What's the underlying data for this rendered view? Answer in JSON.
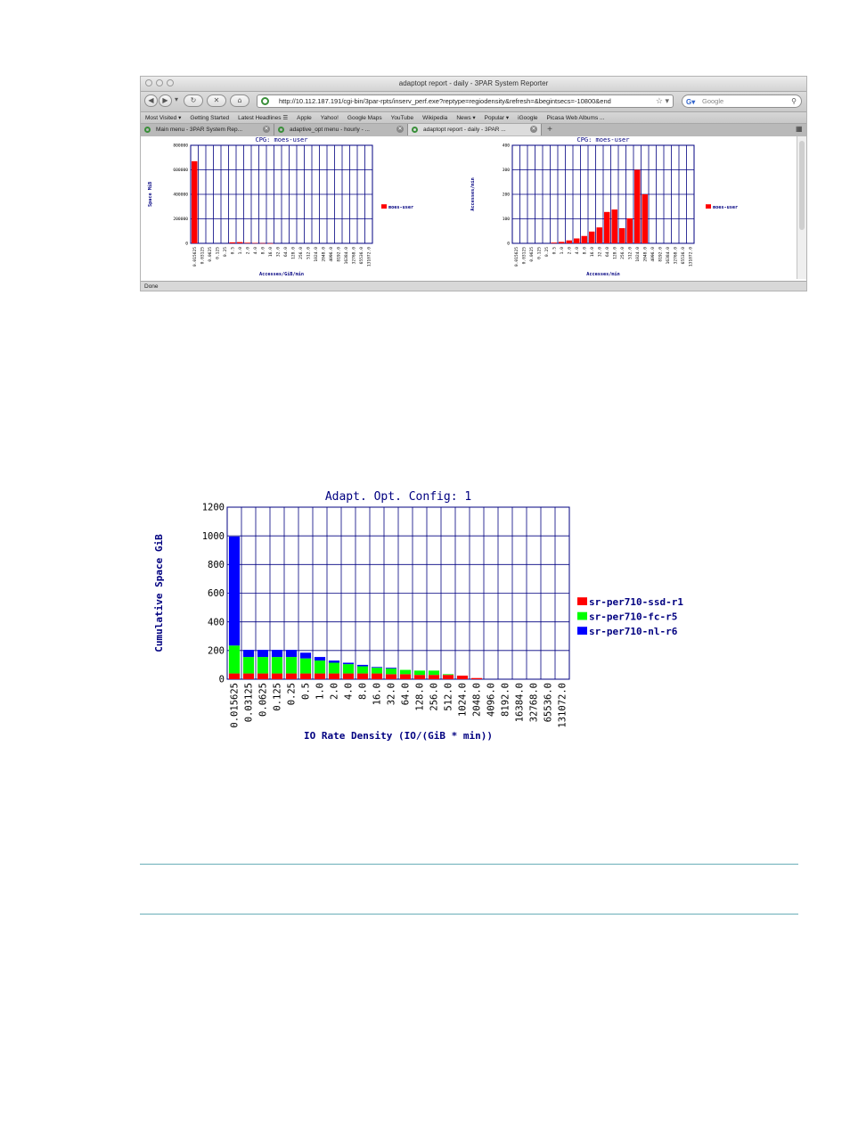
{
  "browser": {
    "window_title": "adaptopt report - daily - 3PAR System Reporter",
    "url": "http://10.112.187.191/cgi-bin/3par-rpts/inserv_perf.exe?reptype=regiodensity&refresh=&begintsecs=-10800&end",
    "search_placeholder": "Google",
    "bookmarks": [
      "Most Visited ▾",
      "Getting Started",
      "Latest Headlines ☰",
      "Apple",
      "Yahoo!",
      "Google Maps",
      "YouTube",
      "Wikipedia",
      "News ▾",
      "Popular ▾",
      "iGoogle",
      "Picasa Web Albums ..."
    ],
    "tabs": [
      {
        "label": "Main menu - 3PAR System Rep...",
        "active": false
      },
      {
        "label": "adaptive_opt menu - hourly - ...",
        "active": false
      },
      {
        "label": "adaptopt report - daily - 3PAR ...",
        "active": true
      }
    ],
    "status": "Done",
    "icons": {
      "back": "back-arrow-icon",
      "forward": "forward-arrow-icon",
      "reload": "reload-icon",
      "stop": "stop-icon",
      "home": "home-icon"
    }
  },
  "chart_data": [
    {
      "type": "bar",
      "title": "CPG: moes-user",
      "xlabel": "Accesses/GiB/min",
      "ylabel": "Space MiB",
      "categories": [
        "0.015625",
        "0.03125",
        "0.0625",
        "0.125",
        "0.25",
        "0.5",
        "1.0",
        "2.0",
        "4.0",
        "8.0",
        "16.0",
        "32.0",
        "64.0",
        "128.0",
        "256.0",
        "512.0",
        "1024.0",
        "2048.0",
        "4096.0",
        "8192.0",
        "16384.0",
        "32768.0",
        "65536.0",
        "131072.0"
      ],
      "yticks": [
        "0",
        "200000",
        "400000",
        "600000",
        "800000"
      ],
      "ylim": [
        0,
        800000
      ],
      "series": [
        {
          "name": "moes-user",
          "color": "#ff0000",
          "values": [
            670000,
            0,
            0,
            0,
            0,
            8000,
            10000,
            5000,
            3000,
            2000,
            1000,
            0,
            0,
            0,
            0,
            0,
            0,
            0,
            0,
            0,
            0,
            0,
            0,
            0
          ]
        }
      ],
      "legend": "right",
      "grid": true
    },
    {
      "type": "bar",
      "title": "CPG: moes-user",
      "xlabel": "Accesses/min",
      "ylabel": "Accesses/min",
      "categories": [
        "0.015625",
        "0.03125",
        "0.0625",
        "0.125",
        "0.25",
        "0.5",
        "1.0",
        "2.0",
        "4.0",
        "8.0",
        "16.0",
        "32.0",
        "64.0",
        "128.0",
        "256.0",
        "512.0",
        "1024.0",
        "2048.0",
        "4096.0",
        "8192.0",
        "16384.0",
        "32768.0",
        "65536.0",
        "131072.0"
      ],
      "yticks": [
        "0",
        "100",
        "200",
        "300",
        "400"
      ],
      "ylim": [
        0,
        400
      ],
      "series": [
        {
          "name": "moes-user",
          "color": "#ff0000",
          "values": [
            0,
            0,
            0,
            0,
            0,
            3,
            6,
            12,
            20,
            30,
            48,
            65,
            128,
            138,
            62,
            102,
            300,
            200,
            0,
            0,
            0,
            0,
            0,
            0
          ]
        }
      ],
      "legend": "right",
      "grid": true
    },
    {
      "type": "bar",
      "stacked": true,
      "title": "Adapt. Opt. Config: 1",
      "xlabel": "IO Rate Density (IO/(GiB * min))",
      "ylabel": "Cumulative Space GiB",
      "categories": [
        "0.015625",
        "0.03125",
        "0.0625",
        "0.125",
        "0.25",
        "0.5",
        "1.0",
        "2.0",
        "4.0",
        "8.0",
        "16.0",
        "32.0",
        "64.0",
        "128.0",
        "256.0",
        "512.0",
        "1024.0",
        "2048.0",
        "4096.0",
        "8192.0",
        "16384.0",
        "32768.0",
        "65536.0",
        "131072.0"
      ],
      "yticks": [
        "0",
        "200",
        "400",
        "600",
        "800",
        "1000",
        "1200"
      ],
      "ylim": [
        0,
        1200
      ],
      "series": [
        {
          "name": "sr-per710-ssd-r1",
          "color": "#ff0000",
          "values": [
            40,
            40,
            40,
            40,
            40,
            40,
            40,
            40,
            40,
            40,
            40,
            35,
            35,
            30,
            30,
            30,
            25,
            8,
            0,
            0,
            0,
            0,
            0,
            0
          ]
        },
        {
          "name": "sr-per710-fc-r5",
          "color": "#00ff00",
          "values": [
            195,
            115,
            115,
            115,
            115,
            105,
            90,
            75,
            65,
            50,
            40,
            40,
            30,
            30,
            30,
            5,
            0,
            0,
            0,
            0,
            0,
            0,
            0,
            0
          ]
        },
        {
          "name": "sr-per710-nl-r6",
          "color": "#0000ff",
          "values": [
            760,
            50,
            50,
            50,
            50,
            40,
            25,
            15,
            10,
            10,
            5,
            5,
            0,
            0,
            0,
            0,
            0,
            0,
            0,
            0,
            0,
            0,
            0,
            0
          ]
        }
      ],
      "legend": "right",
      "grid": true
    }
  ]
}
